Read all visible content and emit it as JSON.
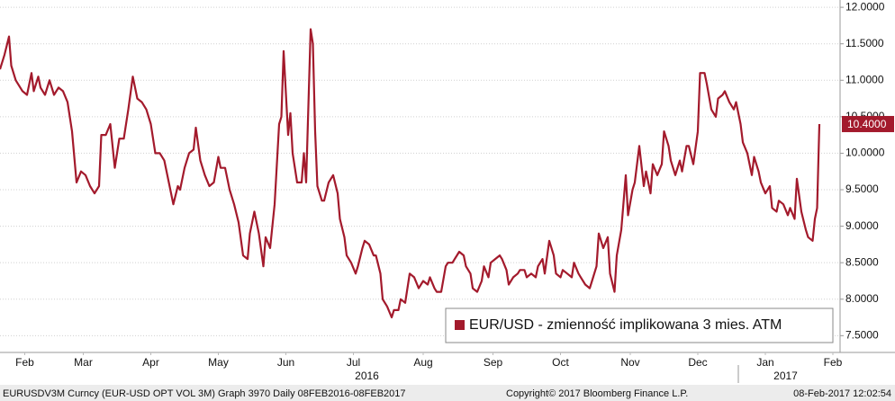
{
  "chart_data": {
    "type": "line",
    "series": [
      {
        "name": "EUR/USD - zmienność implikowana 3 mies. ATM",
        "color": "#a31a2c",
        "x": [
          0,
          2,
          4,
          5,
          7,
          10,
          12,
          14,
          15,
          17,
          18,
          20,
          22,
          24,
          26,
          28,
          30,
          32,
          34,
          36,
          38,
          40,
          42,
          44,
          45,
          47,
          49,
          50,
          51,
          53,
          55,
          57,
          59,
          61,
          63,
          65,
          67,
          69,
          71,
          73,
          75,
          77,
          79,
          80,
          82,
          84,
          86,
          87,
          89,
          91,
          93,
          95,
          97,
          98,
          100,
          102,
          104,
          106,
          108,
          110,
          111,
          113,
          115,
          117,
          118,
          120,
          122,
          124,
          125,
          126,
          128,
          129,
          130,
          132,
          134,
          135,
          136,
          138,
          139,
          140,
          141,
          143,
          144,
          146,
          148,
          150,
          151,
          153,
          154,
          156,
          158,
          159,
          161,
          162,
          164,
          166,
          167,
          169,
          170,
          172,
          174,
          175,
          177,
          178,
          180,
          182,
          184,
          186,
          188,
          190,
          191,
          193,
          194,
          196,
          198,
          199,
          201,
          202,
          204,
          206,
          207,
          209,
          210,
          212,
          214,
          215,
          217,
          218,
          220,
          222,
          223,
          225,
          226,
          228,
          230,
          231,
          233,
          234,
          236,
          238,
          239,
          241,
          242,
          244,
          246,
          247,
          249,
          250,
          252,
          254,
          255,
          257,
          258,
          260,
          262,
          263,
          265,
          266,
          268,
          270,
          271,
          273,
          274,
          276,
          278,
          279,
          281,
          282,
          284,
          286,
          287,
          289,
          290,
          292,
          294,
          295,
          297,
          298,
          300,
          302,
          303,
          305,
          306,
          308,
          310,
          311,
          313,
          314,
          316,
          318,
          319,
          321,
          322,
          324,
          326,
          327,
          329,
          330,
          332,
          334,
          335,
          337,
          338,
          340,
          342,
          343,
          345,
          346,
          348,
          350,
          351,
          353,
          354,
          356,
          358,
          359,
          361,
          362,
          363,
          364
        ],
        "values": [
          11.15,
          11.35,
          11.6,
          11.2,
          11.0,
          10.85,
          10.8,
          11.1,
          10.85,
          11.05,
          10.9,
          10.8,
          11.0,
          10.8,
          10.9,
          10.85,
          10.7,
          10.3,
          9.6,
          9.75,
          9.7,
          9.55,
          9.45,
          9.55,
          10.25,
          10.25,
          10.4,
          10.1,
          9.8,
          10.2,
          10.2,
          10.6,
          11.05,
          10.75,
          10.7,
          10.6,
          10.4,
          10.0,
          10.0,
          9.9,
          9.6,
          9.3,
          9.55,
          9.5,
          9.8,
          10.0,
          10.05,
          10.35,
          9.9,
          9.7,
          9.55,
          9.6,
          9.95,
          9.8,
          9.8,
          9.5,
          9.3,
          9.05,
          8.6,
          8.55,
          8.9,
          9.2,
          8.9,
          8.45,
          8.85,
          8.7,
          9.3,
          10.4,
          10.5,
          11.4,
          10.25,
          10.55,
          10.0,
          9.6,
          9.6,
          10.0,
          9.6,
          11.7,
          11.5,
          10.3,
          9.55,
          9.35,
          9.35,
          9.6,
          9.7,
          9.45,
          9.1,
          8.85,
          8.6,
          8.5,
          8.35,
          8.45,
          8.7,
          8.8,
          8.75,
          8.6,
          8.6,
          8.35,
          8.0,
          7.9,
          7.75,
          7.85,
          7.85,
          8.0,
          7.95,
          8.35,
          8.3,
          8.15,
          8.25,
          8.2,
          8.3,
          8.15,
          8.1,
          8.1,
          8.45,
          8.5,
          8.5,
          8.55,
          8.65,
          8.6,
          8.45,
          8.35,
          8.15,
          8.1,
          8.25,
          8.45,
          8.3,
          8.5,
          8.55,
          8.6,
          8.55,
          8.4,
          8.2,
          8.3,
          8.35,
          8.4,
          8.4,
          8.3,
          8.35,
          8.3,
          8.45,
          8.55,
          8.35,
          8.8,
          8.6,
          8.35,
          8.3,
          8.4,
          8.35,
          8.3,
          8.5,
          8.35,
          8.3,
          8.2,
          8.15,
          8.25,
          8.45,
          8.9,
          8.7,
          8.85,
          8.35,
          8.1,
          8.6,
          8.95,
          9.7,
          9.15,
          9.5,
          9.6,
          10.1,
          9.55,
          9.75,
          9.45,
          9.85,
          9.7,
          9.85,
          10.3,
          10.1,
          9.9,
          9.7,
          9.9,
          9.75,
          10.1,
          10.1,
          9.85,
          10.3,
          11.1,
          11.1,
          10.95,
          10.6,
          10.5,
          10.75,
          10.8,
          10.85,
          10.7,
          10.6,
          10.7,
          10.4,
          10.15,
          10.0,
          9.7,
          9.95,
          9.75,
          9.6,
          9.45,
          9.55,
          9.25,
          9.2,
          9.35,
          9.3,
          9.15,
          9.25,
          9.1,
          9.65,
          9.2,
          8.95,
          8.85,
          8.8,
          9.1,
          9.25,
          10.4
        ]
      }
    ],
    "last_label": "10.4000",
    "xlim": [
      0,
      373.2
    ],
    "xticks": [
      {
        "value": 11,
        "label": "Feb"
      },
      {
        "value": 37,
        "label": "Mar"
      },
      {
        "value": 67,
        "label": "Apr"
      },
      {
        "value": 97,
        "label": "May"
      },
      {
        "value": 127,
        "label": "Jun"
      },
      {
        "value": 157,
        "label": "Jul"
      },
      {
        "value": 188,
        "label": "Aug"
      },
      {
        "value": 219,
        "label": "Sep"
      },
      {
        "value": 249,
        "label": "Oct"
      },
      {
        "value": 280,
        "label": "Nov"
      },
      {
        "value": 310,
        "label": "Dec"
      },
      {
        "value": 340,
        "label": "Jan"
      },
      {
        "value": 370,
        "label": "Feb"
      }
    ],
    "year_labels": [
      {
        "value": 163,
        "label": "2016"
      },
      {
        "value": 349,
        "label": "2017"
      }
    ],
    "ylim": [
      7.27,
      12.1
    ],
    "yticks": [
      {
        "value": 7.5,
        "label": "7.5000"
      },
      {
        "value": 8,
        "label": "8.0000"
      },
      {
        "value": 8.5,
        "label": "8.5000"
      },
      {
        "value": 9,
        "label": "9.0000"
      },
      {
        "value": 9.5,
        "label": "9.5000"
      },
      {
        "value": 10,
        "label": "10.0000"
      },
      {
        "value": 10.5,
        "label": "10.5000"
      },
      {
        "value": 11,
        "label": "11.0000"
      },
      {
        "value": 11.5,
        "label": "11.5000"
      },
      {
        "value": 12,
        "label": "12.0000"
      }
    ],
    "grid": true,
    "footer": [
      "EURUSDV3M Curncy (EUR-USD OPT VOL 3M) Graph 3970  Daily 08FEB2016-08FEB2017",
      "Copyright© 2017 Bloomberg Finance L.P.",
      "08-Feb-2017 12:02:54"
    ]
  }
}
